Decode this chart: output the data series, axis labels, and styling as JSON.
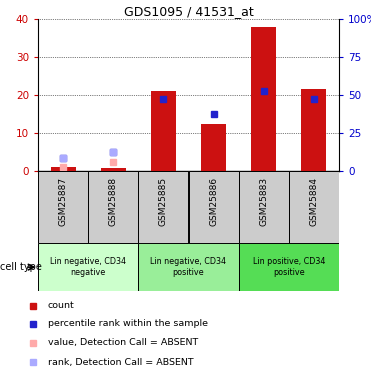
{
  "title": "GDS1095 / 41531_at",
  "samples": [
    "GSM25887",
    "GSM25888",
    "GSM25885",
    "GSM25886",
    "GSM25883",
    "GSM25884"
  ],
  "red_bars": [
    1.0,
    0.8,
    21.0,
    12.5,
    38.0,
    21.5
  ],
  "blue_squares": [
    3.5,
    5.0,
    19.0,
    15.0,
    21.0,
    19.0
  ],
  "pink_squares": [
    1.0,
    2.5,
    null,
    null,
    null,
    null
  ],
  "light_blue_squares": [
    3.5,
    5.0,
    null,
    null,
    null,
    null
  ],
  "absent_samples": [
    0,
    1
  ],
  "ylim_left": [
    0,
    40
  ],
  "ylim_right": [
    0,
    100
  ],
  "yticks_left": [
    0,
    10,
    20,
    30,
    40
  ],
  "yticks_right": [
    0,
    25,
    50,
    75,
    100
  ],
  "cell_groups": [
    {
      "label": "Lin negative, CD34\nnegative",
      "color": "#ccffcc",
      "start": 0,
      "end": 1
    },
    {
      "label": "Lin negative, CD34\npositive",
      "color": "#99ee99",
      "start": 2,
      "end": 3
    },
    {
      "label": "Lin positive, CD34\npositive",
      "color": "#55dd55",
      "start": 4,
      "end": 5
    }
  ],
  "bar_color": "#cc1111",
  "blue_sq_color": "#2222cc",
  "pink_sq_color": "#ffaaaa",
  "light_blue_sq_color": "#aaaaff",
  "sample_bg_color": "#cccccc",
  "left_axis_color": "#cc0000",
  "right_axis_color": "#0000cc",
  "bar_width": 0.5,
  "legend_items": [
    {
      "label": "count",
      "color": "#cc1111"
    },
    {
      "label": "percentile rank within the sample",
      "color": "#2222cc"
    },
    {
      "label": "value, Detection Call = ABSENT",
      "color": "#ffaaaa"
    },
    {
      "label": "rank, Detection Call = ABSENT",
      "color": "#aaaaff"
    }
  ]
}
